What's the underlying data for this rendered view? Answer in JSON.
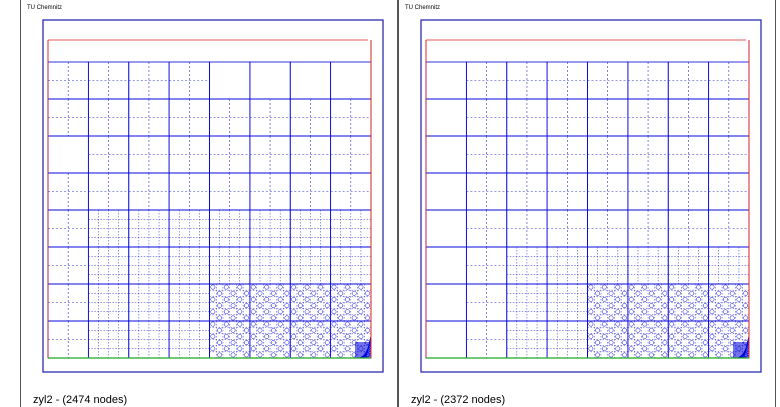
{
  "panels": [
    {
      "header": "TU Chemnitz",
      "caption": "zyl2 - (2474 nodes)",
      "node_count": 2474
    },
    {
      "header": "TU Chemnitz",
      "caption": "zyl2 - (2372 nodes)",
      "node_count": 2372
    }
  ],
  "colors": {
    "frame": "#1a1aa8",
    "mesh": "#0000dd",
    "refine_dotted": "#2f2fcf",
    "boundary_right": "#dd2222",
    "boundary_bottom": "#22aa22",
    "panel_border": "#555555"
  }
}
